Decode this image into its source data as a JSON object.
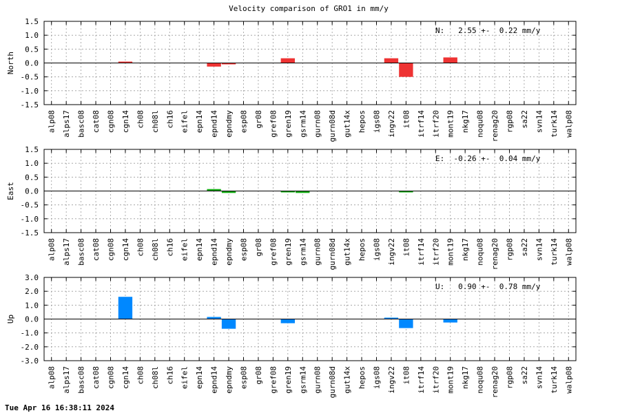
{
  "title": "Velocity comparison of GRO1 in mm/y",
  "footer": "Tue Apr 16 16:38:11 2024",
  "chart_data": [
    {
      "type": "bar",
      "ylabel": "North",
      "annotation": "N:   2.55 +-  0.22 mm/y",
      "color": "#ee3333",
      "ylim": [
        -1.5,
        1.5
      ],
      "yticks": [
        1.5,
        1.0,
        0.5,
        0.0,
        -0.5,
        -1.0,
        -1.5
      ],
      "ytick_labels": [
        "1.5",
        "1.0",
        "0.5",
        "0.0",
        "-0.5",
        "-1.0",
        "-1.5"
      ],
      "grid": true,
      "categories": [
        "alp08",
        "alps17",
        "basc08",
        "cat08",
        "cgn08",
        "cgn14",
        "ch08",
        "ch08l",
        "ch16",
        "eifel",
        "epn14",
        "epnd14",
        "epndmy",
        "esp08",
        "gr08",
        "gref08",
        "gren19",
        "gsrm14",
        "gurn08",
        "gurn08d",
        "gut14x",
        "hepos",
        "igs08",
        "ingv22",
        "it08",
        "itrf14",
        "itrf20",
        "mont19",
        "nkg17",
        "noqu08",
        "renag20",
        "rgp08",
        "sa22",
        "svn14",
        "turk14",
        "walp08"
      ],
      "values": [
        0,
        0,
        0,
        0,
        0,
        0.05,
        0,
        0,
        0,
        0,
        0,
        -0.13,
        -0.05,
        0,
        0,
        0,
        0.17,
        0,
        0,
        0,
        0,
        0,
        0,
        0.17,
        -0.5,
        0,
        0,
        0.2,
        0,
        0,
        0,
        0,
        0,
        0,
        0,
        0
      ]
    },
    {
      "type": "bar",
      "ylabel": "East",
      "annotation": "E:  -0.26 +-  0.04 mm/y",
      "color": "#11aa11",
      "ylim": [
        -1.5,
        1.5
      ],
      "yticks": [
        1.5,
        1.0,
        0.5,
        0.0,
        -0.5,
        -1.0,
        -1.5
      ],
      "ytick_labels": [
        "1.5",
        "1.0",
        "0.5",
        "0.0",
        "-0.5",
        "-1.0",
        "-1.5"
      ],
      "grid": true,
      "categories": [
        "alp08",
        "alps17",
        "basc08",
        "cat08",
        "cgn08",
        "cgn14",
        "ch08",
        "ch08l",
        "ch16",
        "eifel",
        "epn14",
        "epnd14",
        "epndmy",
        "esp08",
        "gr08",
        "gref08",
        "gren19",
        "gsrm14",
        "gurn08",
        "gurn08d",
        "gut14x",
        "hepos",
        "igs08",
        "ingv22",
        "it08",
        "itrf14",
        "itrf20",
        "mont19",
        "nkg17",
        "noqu08",
        "renag20",
        "rgp08",
        "sa22",
        "svn14",
        "turk14",
        "walp08"
      ],
      "values": [
        0,
        0,
        0,
        0,
        0,
        0,
        0,
        0,
        0,
        0,
        0,
        0.07,
        -0.07,
        0,
        0,
        0,
        -0.05,
        -0.07,
        0,
        0,
        0,
        0,
        0,
        0,
        -0.05,
        0,
        0,
        0,
        0,
        0,
        0,
        0,
        0,
        0,
        0,
        0
      ]
    },
    {
      "type": "bar",
      "ylabel": "Up",
      "annotation": "U:   0.90 +-  0.78 mm/y",
      "color": "#0088ff",
      "ylim": [
        -3.0,
        3.0
      ],
      "yticks": [
        3.0,
        2.0,
        1.0,
        0.0,
        -1.0,
        -2.0,
        -3.0
      ],
      "ytick_labels": [
        "3.0",
        "2.0",
        "1.0",
        "0.0",
        "-1.0",
        "-2.0",
        "-3.0"
      ],
      "grid": true,
      "categories": [
        "alp08",
        "alps17",
        "basc08",
        "cat08",
        "cgn08",
        "cgn14",
        "ch08",
        "ch08l",
        "ch16",
        "eifel",
        "epn14",
        "epnd14",
        "epndmy",
        "esp08",
        "gr08",
        "gref08",
        "gren19",
        "gsrm14",
        "gurn08",
        "gurn08d",
        "gut14x",
        "hepos",
        "igs08",
        "ingv22",
        "it08",
        "itrf14",
        "itrf20",
        "mont19",
        "nkg17",
        "noqu08",
        "renag20",
        "rgp08",
        "sa22",
        "svn14",
        "turk14",
        "walp08"
      ],
      "values": [
        0,
        0,
        0,
        0,
        0,
        1.6,
        0,
        0,
        0,
        0,
        0,
        0.15,
        -0.7,
        0,
        0,
        0,
        -0.3,
        0,
        0,
        0,
        0,
        0,
        0,
        0.1,
        -0.65,
        0,
        0,
        -0.25,
        0,
        0,
        0,
        0,
        0,
        0,
        0,
        0
      ]
    }
  ]
}
